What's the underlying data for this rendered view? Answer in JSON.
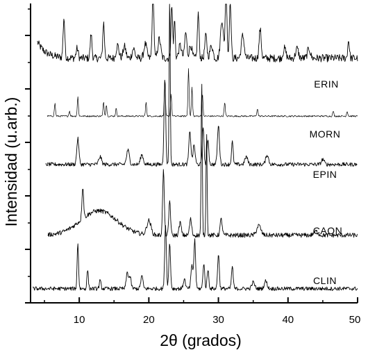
{
  "chart_data": {
    "type": "line",
    "title": "",
    "xlabel": "2θ (grados)",
    "ylabel": "Intensidad (u.arb.)",
    "xlim": [
      3,
      50
    ],
    "x_ticks": [
      10,
      20,
      30,
      40,
      50
    ],
    "y_ticks_labeled": false,
    "grid": false,
    "legend": "labels next to each trace on the right",
    "series": [
      {
        "name": "ERIN",
        "baseline": 3.8,
        "noise": 0.06,
        "peaks": [
          [
            7.8,
            0.62,
            0.12
          ],
          [
            9.7,
            0.15,
            0.15
          ],
          [
            11.7,
            0.38,
            0.12
          ],
          [
            13.5,
            0.55,
            0.12
          ],
          [
            15.5,
            0.2,
            0.2
          ],
          [
            16.5,
            0.18,
            0.2
          ],
          [
            17.8,
            0.15,
            0.2
          ],
          [
            19.5,
            0.22,
            0.2
          ],
          [
            20.6,
            1.08,
            0.12
          ],
          [
            21.5,
            0.3,
            0.2
          ],
          [
            23.3,
            0.8,
            0.12
          ],
          [
            23.7,
            0.6,
            0.1
          ],
          [
            24.5,
            0.2,
            0.2
          ],
          [
            25.3,
            0.4,
            0.15
          ],
          [
            26.0,
            0.2,
            0.2
          ],
          [
            27.1,
            0.7,
            0.12
          ],
          [
            28.2,
            0.35,
            0.15
          ],
          [
            29.0,
            0.2,
            0.2
          ],
          [
            30.5,
            0.6,
            0.2
          ],
          [
            31.1,
            1.18,
            0.12
          ],
          [
            31.7,
            0.95,
            0.12
          ],
          [
            33.5,
            0.35,
            0.2
          ],
          [
            36.0,
            0.45,
            0.15
          ],
          [
            39.5,
            0.15,
            0.2
          ],
          [
            41.3,
            0.15,
            0.2
          ],
          [
            43.0,
            0.15,
            0.2
          ],
          [
            48.7,
            0.28,
            0.12
          ]
        ]
      },
      {
        "name": "MORN",
        "baseline": 2.9,
        "noise": 0.012,
        "peaks": [
          [
            6.5,
            0.2,
            0.08
          ],
          [
            8.6,
            0.08,
            0.08
          ],
          [
            9.8,
            0.3,
            0.08
          ],
          [
            13.5,
            0.22,
            0.08
          ],
          [
            13.9,
            0.18,
            0.08
          ],
          [
            15.3,
            0.12,
            0.08
          ],
          [
            19.6,
            0.22,
            0.08
          ],
          [
            22.3,
            0.55,
            0.08
          ],
          [
            23.2,
            0.35,
            0.08
          ],
          [
            25.7,
            0.75,
            0.08
          ],
          [
            26.2,
            0.45,
            0.08
          ],
          [
            27.7,
            0.35,
            0.08
          ],
          [
            30.9,
            0.22,
            0.08
          ],
          [
            35.6,
            0.12,
            0.08
          ],
          [
            46.5,
            0.08,
            0.08
          ],
          [
            48.5,
            0.08,
            0.08
          ]
        ]
      },
      {
        "name": "EPIN",
        "baseline": 2.15,
        "noise": 0.03,
        "peaks": [
          [
            9.8,
            0.4,
            0.15
          ],
          [
            13.0,
            0.12,
            0.2
          ],
          [
            17.0,
            0.22,
            0.2
          ],
          [
            19.0,
            0.15,
            0.2
          ],
          [
            22.3,
            1.35,
            0.12
          ],
          [
            23.0,
            2.65,
            0.08
          ],
          [
            25.9,
            0.5,
            0.15
          ],
          [
            26.5,
            0.3,
            0.15
          ],
          [
            27.8,
            0.6,
            0.12
          ],
          [
            28.5,
            0.4,
            0.12
          ],
          [
            30.0,
            0.6,
            0.15
          ],
          [
            32.0,
            0.35,
            0.12
          ],
          [
            34.0,
            0.12,
            0.2
          ],
          [
            37.0,
            0.15,
            0.2
          ],
          [
            45.0,
            0.08,
            0.2
          ]
        ]
      },
      {
        "name": "CAON",
        "baseline": 1.05,
        "noise": 0.035,
        "peaks": [
          [
            12.8,
            0.38,
            2.6
          ],
          [
            10.5,
            0.5,
            0.12
          ],
          [
            20.0,
            0.22,
            0.3
          ],
          [
            22.1,
            1.0,
            0.12
          ],
          [
            23.0,
            0.55,
            0.12
          ],
          [
            24.5,
            0.2,
            0.15
          ],
          [
            26.0,
            0.25,
            0.15
          ],
          [
            27.6,
            2.4,
            0.08
          ],
          [
            28.3,
            1.6,
            0.08
          ],
          [
            30.4,
            0.25,
            0.15
          ],
          [
            35.8,
            0.15,
            0.3
          ],
          [
            44.0,
            0.06,
            0.3
          ]
        ]
      },
      {
        "name": "CLIN",
        "baseline": 0.22,
        "noise": 0.03,
        "peaks": [
          [
            9.8,
            0.72,
            0.1
          ],
          [
            11.2,
            0.3,
            0.1
          ],
          [
            13.0,
            0.12,
            0.12
          ],
          [
            16.9,
            0.25,
            0.15
          ],
          [
            17.3,
            0.18,
            0.15
          ],
          [
            19.0,
            0.2,
            0.15
          ],
          [
            22.4,
            1.0,
            0.12
          ],
          [
            23.0,
            0.7,
            0.12
          ],
          [
            25.1,
            0.15,
            0.15
          ],
          [
            26.2,
            0.35,
            0.15
          ],
          [
            26.6,
            0.75,
            0.12
          ],
          [
            27.9,
            0.4,
            0.12
          ],
          [
            28.5,
            0.3,
            0.12
          ],
          [
            30.0,
            0.55,
            0.12
          ],
          [
            32.0,
            0.35,
            0.12
          ],
          [
            35.0,
            0.1,
            0.2
          ],
          [
            36.8,
            0.12,
            0.2
          ]
        ]
      }
    ]
  }
}
